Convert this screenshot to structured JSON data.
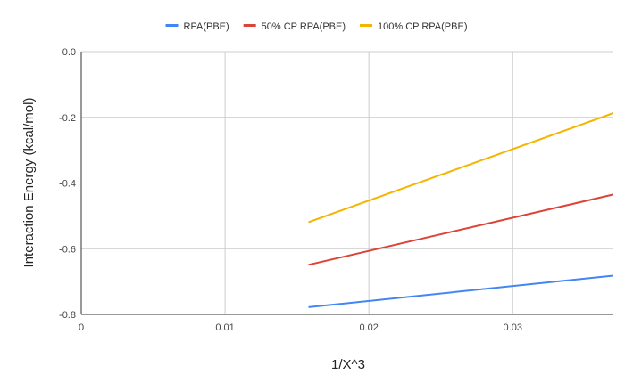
{
  "chart_data": {
    "type": "line",
    "title": "",
    "xlabel": "1/X^3",
    "ylabel": "Interaction Energy (kcal/mol)",
    "xlim": [
      0,
      0.037
    ],
    "ylim": [
      -0.8,
      0.0
    ],
    "x_ticks": [
      {
        "value": 0,
        "label": "0"
      },
      {
        "value": 0.01,
        "label": "0.01"
      },
      {
        "value": 0.02,
        "label": "0.02"
      },
      {
        "value": 0.03,
        "label": "0.03"
      }
    ],
    "y_ticks": [
      {
        "value": 0.0,
        "label": "0.0"
      },
      {
        "value": -0.2,
        "label": "-0.2"
      },
      {
        "value": -0.4,
        "label": "-0.4"
      },
      {
        "value": -0.6,
        "label": "-0.6"
      },
      {
        "value": -0.8,
        "label": "-0.8"
      }
    ],
    "grid": true,
    "legend_position": "top",
    "series": [
      {
        "name": "RPA(PBE)",
        "color": "#4285f4",
        "x": [
          0.0158,
          0.037
        ],
        "y": [
          -0.778,
          -0.682
        ]
      },
      {
        "name": "50% CP RPA(PBE)",
        "color": "#db4437",
        "x": [
          0.0158,
          0.037
        ],
        "y": [
          -0.649,
          -0.435
        ]
      },
      {
        "name": "100% CP RPA(PBE)",
        "color": "#f4b400",
        "x": [
          0.0158,
          0.037
        ],
        "y": [
          -0.519,
          -0.187
        ]
      }
    ]
  }
}
